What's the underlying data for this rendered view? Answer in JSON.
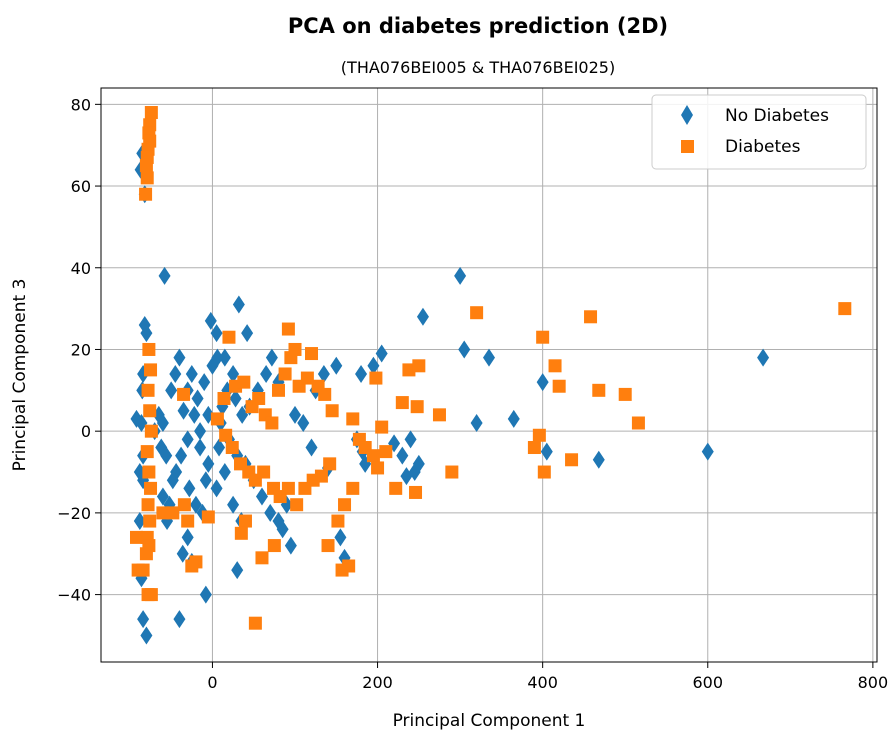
{
  "chart_data": {
    "type": "scatter",
    "title": "PCA on diabetes prediction (2D)",
    "subtitle": "(THA076BEI005 & THA076BEI025)",
    "xlabel": "Principal Component 1",
    "ylabel": "Principal Component 3",
    "xlim": [
      -135,
      805
    ],
    "ylim": [
      -56.5,
      84
    ],
    "xticks": [
      0,
      200,
      400,
      600,
      800
    ],
    "yticks": [
      -40,
      -20,
      0,
      20,
      40,
      60,
      80
    ],
    "xtick_labels": [
      "0",
      "200",
      "400",
      "600",
      "800"
    ],
    "ytick_labels": [
      "−40",
      "−20",
      "0",
      "20",
      "40",
      "60",
      "80"
    ],
    "grid": true,
    "legend_position": "top-right",
    "series": [
      {
        "name": "No Diabetes",
        "marker": "diamond",
        "color": "#1f77b4",
        "points": [
          [
            -85,
            68
          ],
          [
            -87,
            64
          ],
          [
            -82,
            26
          ],
          [
            -80,
            24
          ],
          [
            -82,
            58
          ],
          [
            -58,
            38
          ],
          [
            -40,
            18
          ],
          [
            -45,
            14
          ],
          [
            -50,
            10
          ],
          [
            -35,
            5
          ],
          [
            -30,
            -2
          ],
          [
            -38,
            -6
          ],
          [
            -44,
            -10
          ],
          [
            -28,
            -14
          ],
          [
            -20,
            -18
          ],
          [
            -12,
            -20
          ],
          [
            -8,
            -12
          ],
          [
            -5,
            -8
          ],
          [
            -15,
            -4
          ],
          [
            -22,
            4
          ],
          [
            -18,
            8
          ],
          [
            -10,
            12
          ],
          [
            0,
            16
          ],
          [
            6,
            18
          ],
          [
            -2,
            27
          ],
          [
            5,
            24
          ],
          [
            15,
            18
          ],
          [
            25,
            14
          ],
          [
            32,
            31
          ],
          [
            42,
            24
          ],
          [
            18,
            10
          ],
          [
            28,
            8
          ],
          [
            36,
            4
          ],
          [
            45,
            6
          ],
          [
            55,
            10
          ],
          [
            65,
            14
          ],
          [
            72,
            18
          ],
          [
            80,
            12
          ],
          [
            10,
            2
          ],
          [
            20,
            -2
          ],
          [
            30,
            -6
          ],
          [
            40,
            -8
          ],
          [
            50,
            -12
          ],
          [
            60,
            -16
          ],
          [
            70,
            -20
          ],
          [
            80,
            -22
          ],
          [
            90,
            -18
          ],
          [
            5,
            -14
          ],
          [
            15,
            -10
          ],
          [
            25,
            -18
          ],
          [
            35,
            -22
          ],
          [
            -30,
            -26
          ],
          [
            -36,
            -30
          ],
          [
            -25,
            -32
          ],
          [
            -8,
            -40
          ],
          [
            -40,
            -46
          ],
          [
            -88,
            -22
          ],
          [
            -86,
            -36
          ],
          [
            -84,
            -46
          ],
          [
            -80,
            -50
          ],
          [
            -86,
            2
          ],
          [
            -84,
            -6
          ],
          [
            -85,
            10
          ],
          [
            -84,
            -12
          ],
          [
            -92,
            3
          ],
          [
            -88,
            -10
          ],
          [
            -84,
            14
          ],
          [
            -60,
            -16
          ],
          [
            -52,
            -18
          ],
          [
            -55,
            -22
          ],
          [
            -48,
            -12
          ],
          [
            -56,
            -6
          ],
          [
            30,
            -34
          ],
          [
            160,
            -31
          ],
          [
            175,
            -2
          ],
          [
            182,
            -5
          ],
          [
            185,
            -8
          ],
          [
            180,
            14
          ],
          [
            195,
            16
          ],
          [
            205,
            19
          ],
          [
            220,
            -3
          ],
          [
            230,
            -6
          ],
          [
            235,
            -11
          ],
          [
            240,
            -2
          ],
          [
            245,
            -10
          ],
          [
            250,
            -8
          ],
          [
            255,
            28
          ],
          [
            300,
            38
          ],
          [
            305,
            20
          ],
          [
            320,
            2
          ],
          [
            335,
            18
          ],
          [
            365,
            3
          ],
          [
            400,
            12
          ],
          [
            405,
            -5
          ],
          [
            468,
            -7
          ],
          [
            600,
            -5
          ],
          [
            667,
            18
          ],
          [
            100,
            4
          ],
          [
            110,
            2
          ],
          [
            120,
            -4
          ],
          [
            125,
            10
          ],
          [
            135,
            14
          ],
          [
            140,
            -9
          ],
          [
            150,
            16
          ],
          [
            155,
            -26
          ],
          [
            95,
            -28
          ],
          [
            85,
            -24
          ],
          [
            -70,
            0
          ],
          [
            -65,
            4
          ],
          [
            -60,
            2
          ],
          [
            -62,
            -4
          ],
          [
            -30,
            10
          ],
          [
            -25,
            14
          ],
          [
            -15,
            0
          ],
          [
            -5,
            4
          ],
          [
            8,
            -4
          ],
          [
            12,
            6
          ]
        ]
      },
      {
        "name": "Diabetes",
        "marker": "square",
        "color": "#ff7f0e",
        "points": [
          [
            -74,
            78
          ],
          [
            -76,
            75
          ],
          [
            -77,
            73
          ],
          [
            -76,
            71
          ],
          [
            -78,
            69
          ],
          [
            -79,
            67
          ],
          [
            -80,
            65
          ],
          [
            -79,
            62
          ],
          [
            -81,
            58
          ],
          [
            -77,
            20
          ],
          [
            -75,
            15
          ],
          [
            -78,
            10
          ],
          [
            -76,
            5
          ],
          [
            -74,
            0
          ],
          [
            -79,
            -5
          ],
          [
            -77,
            -10
          ],
          [
            -75,
            -14
          ],
          [
            -78,
            -18
          ],
          [
            -76,
            -22
          ],
          [
            -79,
            -26
          ],
          [
            -77,
            -28
          ],
          [
            -80,
            -30
          ],
          [
            -92,
            -26
          ],
          [
            -90,
            -34
          ],
          [
            -84,
            -34
          ],
          [
            -78,
            -40
          ],
          [
            -74,
            -40
          ],
          [
            -60,
            -20
          ],
          [
            -48,
            -20
          ],
          [
            -34,
            -18
          ],
          [
            -30,
            -22
          ],
          [
            -20,
            -32
          ],
          [
            -35,
            9
          ],
          [
            -5,
            -21
          ],
          [
            6,
            3
          ],
          [
            14,
            8
          ],
          [
            20,
            23
          ],
          [
            28,
            11
          ],
          [
            38,
            12
          ],
          [
            48,
            6
          ],
          [
            56,
            8
          ],
          [
            64,
            4
          ],
          [
            72,
            2
          ],
          [
            80,
            10
          ],
          [
            88,
            14
          ],
          [
            95,
            18
          ],
          [
            100,
            20
          ],
          [
            92,
            25
          ],
          [
            105,
            11
          ],
          [
            115,
            13
          ],
          [
            120,
            19
          ],
          [
            128,
            11
          ],
          [
            136,
            9
          ],
          [
            145,
            5
          ],
          [
            16,
            -1
          ],
          [
            24,
            -4
          ],
          [
            34,
            -8
          ],
          [
            44,
            -10
          ],
          [
            52,
            -12
          ],
          [
            62,
            -10
          ],
          [
            74,
            -14
          ],
          [
            82,
            -16
          ],
          [
            92,
            -14
          ],
          [
            102,
            -18
          ],
          [
            112,
            -14
          ],
          [
            122,
            -12
          ],
          [
            132,
            -11
          ],
          [
            142,
            -8
          ],
          [
            152,
            -22
          ],
          [
            160,
            -18
          ],
          [
            165,
            -33
          ],
          [
            170,
            -14
          ],
          [
            157,
            -34
          ],
          [
            140,
            -28
          ],
          [
            60,
            -31
          ],
          [
            52,
            -47
          ],
          [
            75,
            -28
          ],
          [
            40,
            -22
          ],
          [
            35,
            -25
          ],
          [
            -25,
            -33
          ],
          [
            170,
            3
          ],
          [
            178,
            -2
          ],
          [
            185,
            -4
          ],
          [
            195,
            -6
          ],
          [
            200,
            -9
          ],
          [
            205,
            1
          ],
          [
            210,
            -5
          ],
          [
            198,
            13
          ],
          [
            222,
            -14
          ],
          [
            230,
            7
          ],
          [
            238,
            15
          ],
          [
            250,
            16
          ],
          [
            248,
            6
          ],
          [
            246,
            -15
          ],
          [
            275,
            4
          ],
          [
            290,
            -10
          ],
          [
            320,
            29
          ],
          [
            390,
            -4
          ],
          [
            396,
            -1
          ],
          [
            400,
            23
          ],
          [
            402,
            -10
          ],
          [
            415,
            16
          ],
          [
            420,
            11
          ],
          [
            435,
            -7
          ],
          [
            458,
            28
          ],
          [
            468,
            10
          ],
          [
            500,
            9
          ],
          [
            516,
            2
          ],
          [
            766,
            30
          ]
        ]
      }
    ]
  }
}
